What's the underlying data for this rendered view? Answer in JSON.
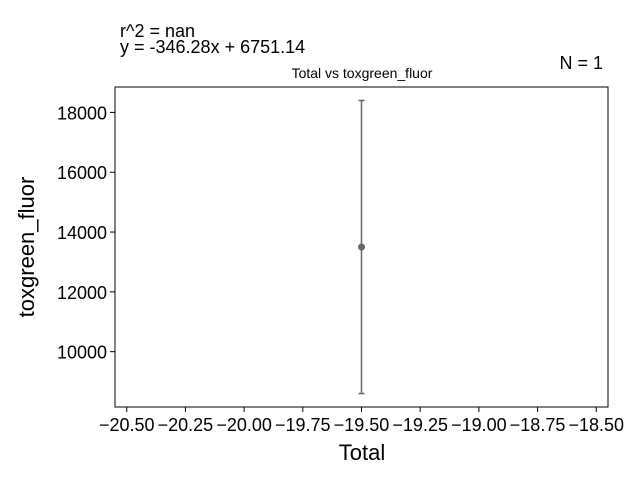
{
  "annotations": {
    "r2": "r^2 = nan",
    "fit": "y = -346.28x + 6751.14",
    "n": "N = 1"
  },
  "chart_data": {
    "type": "scatter",
    "title": "Total vs toxgreen_fluor",
    "xlabel": "Total",
    "ylabel": "toxgreen_fluor",
    "xlim": [
      -20.55,
      -18.45
    ],
    "ylim": [
      8150,
      18850
    ],
    "xticks": [
      -20.5,
      -20.25,
      -20.0,
      -19.75,
      -19.5,
      -19.25,
      -19.0,
      -18.75,
      -18.5
    ],
    "xtick_labels": [
      "−20.50",
      "−20.25",
      "−20.00",
      "−19.75",
      "−19.50",
      "−19.25",
      "−19.00",
      "−18.75",
      "−18.50"
    ],
    "yticks": [
      10000,
      12000,
      14000,
      16000,
      18000
    ],
    "ytick_labels": [
      "10000",
      "12000",
      "14000",
      "16000",
      "18000"
    ],
    "grid": false,
    "points": [
      {
        "x": -19.5,
        "y": 13500,
        "yerr_low": 8600,
        "yerr_high": 18400
      }
    ],
    "marker_color": "#666666"
  }
}
